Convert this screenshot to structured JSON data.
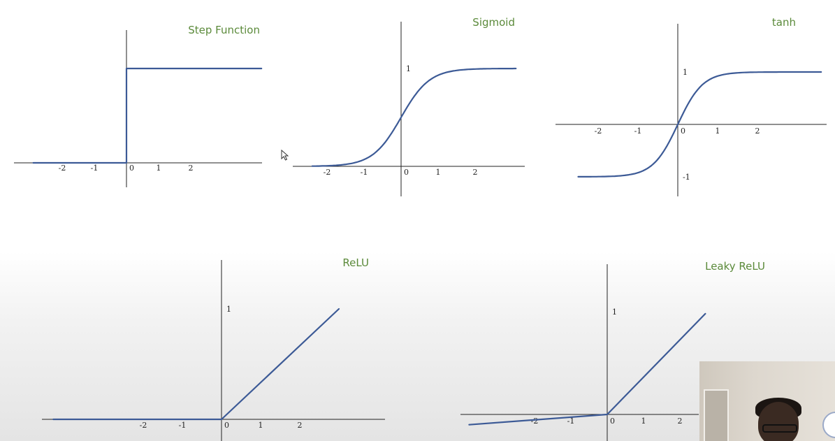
{
  "chart_data": [
    {
      "type": "line",
      "title": "Step Function",
      "xlim": [
        -2.9,
        4.2
      ],
      "ylim": [
        0,
        1
      ],
      "x_ticks": [
        -2,
        -1,
        0,
        1,
        2
      ],
      "y_ticks": [],
      "function": "step",
      "series": [
        {
          "x": [
            -2.9,
            0,
            0,
            4.2
          ],
          "y": [
            0,
            0,
            1,
            1
          ]
        }
      ]
    },
    {
      "type": "line",
      "title": "Sigmoid",
      "xlim": [
        -2.8,
        3.1
      ],
      "ylim": [
        0,
        1
      ],
      "x_ticks": [
        -2,
        -1,
        0,
        1,
        2
      ],
      "y_ticks": [
        1
      ],
      "function": "sigmoid",
      "series": [
        {
          "x": [
            -2.4,
            -2,
            -1,
            -0.5,
            0,
            0.5,
            1,
            2,
            3.1
          ],
          "y": [
            0.0,
            0.01,
            0.08,
            0.3,
            0.5,
            0.78,
            0.9,
            0.98,
            1.0
          ]
        }
      ]
    },
    {
      "type": "line",
      "title": "tanh",
      "xlim": [
        -3.2,
        3.8
      ],
      "ylim": [
        -1,
        1
      ],
      "x_ticks": [
        -2,
        -1,
        0,
        1,
        2
      ],
      "y_ticks": [
        1,
        -1
      ],
      "function": "tanh",
      "series": [
        {
          "x": [
            -2.5,
            -2,
            -1,
            -0.5,
            0,
            0.5,
            1,
            2,
            3.6
          ],
          "y": [
            -0.99,
            -0.98,
            -0.88,
            -0.6,
            0,
            0.6,
            0.85,
            0.96,
            0.99
          ]
        }
      ]
    },
    {
      "type": "line",
      "title": "ReLU",
      "xlim": [
        -4.6,
        4.1
      ],
      "ylim": [
        0,
        1
      ],
      "x_ticks": [
        -2,
        -1,
        0,
        1,
        2
      ],
      "y_ticks": [
        1
      ],
      "function": "relu",
      "series": [
        {
          "x": [
            -4.3,
            0,
            3.0
          ],
          "y": [
            0,
            0,
            1.0
          ]
        }
      ]
    },
    {
      "type": "line",
      "title": "Leaky ReLU",
      "xlim": [
        -3.8,
        3.7
      ],
      "ylim": [
        -0.1,
        1
      ],
      "x_ticks": [
        -2,
        -1,
        0,
        1,
        2
      ],
      "y_ticks": [
        1
      ],
      "function": "leaky_relu",
      "series": [
        {
          "x": [
            -3.8,
            0,
            2.7
          ],
          "y": [
            -0.1,
            0,
            0.98
          ]
        }
      ]
    }
  ],
  "colors": {
    "curve": "#3c5a96",
    "title": "#5b8a3a",
    "axis": "#222222"
  },
  "webcam": {
    "icon": "presenter-webcam"
  },
  "cursor": {
    "icon": "mouse-pointer-icon"
  }
}
